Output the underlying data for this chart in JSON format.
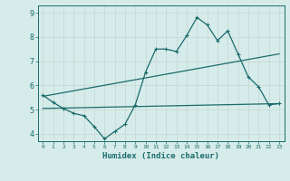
{
  "xlabel": "Humidex (Indice chaleur)",
  "bg_color": "#d6ecea",
  "grid_color": "#b8d8d5",
  "line_color": "#1a6b6b",
  "xlim": [
    -0.5,
    23.5
  ],
  "ylim": [
    3.7,
    9.3
  ],
  "yticks": [
    4,
    5,
    6,
    7,
    8,
    9
  ],
  "xticks": [
    0,
    1,
    2,
    3,
    4,
    5,
    6,
    7,
    8,
    9,
    10,
    11,
    12,
    13,
    14,
    15,
    16,
    17,
    18,
    19,
    20,
    21,
    22,
    23
  ],
  "line1_x": [
    0,
    1,
    2,
    3,
    4,
    5,
    6,
    7,
    8,
    9,
    10,
    11,
    12,
    13,
    14,
    15,
    16,
    17,
    18,
    19,
    20,
    21,
    22,
    23
  ],
  "line1_y": [
    5.6,
    5.3,
    5.05,
    4.85,
    4.75,
    4.3,
    3.8,
    4.1,
    4.4,
    5.2,
    6.55,
    7.5,
    7.5,
    7.4,
    8.05,
    8.8,
    8.5,
    7.85,
    8.25,
    7.3,
    6.35,
    5.95,
    5.2,
    5.25
  ],
  "line2_x": [
    0,
    23
  ],
  "line2_y": [
    5.55,
    7.3
  ],
  "line3_x": [
    0,
    23
  ],
  "line3_y": [
    5.05,
    5.25
  ]
}
